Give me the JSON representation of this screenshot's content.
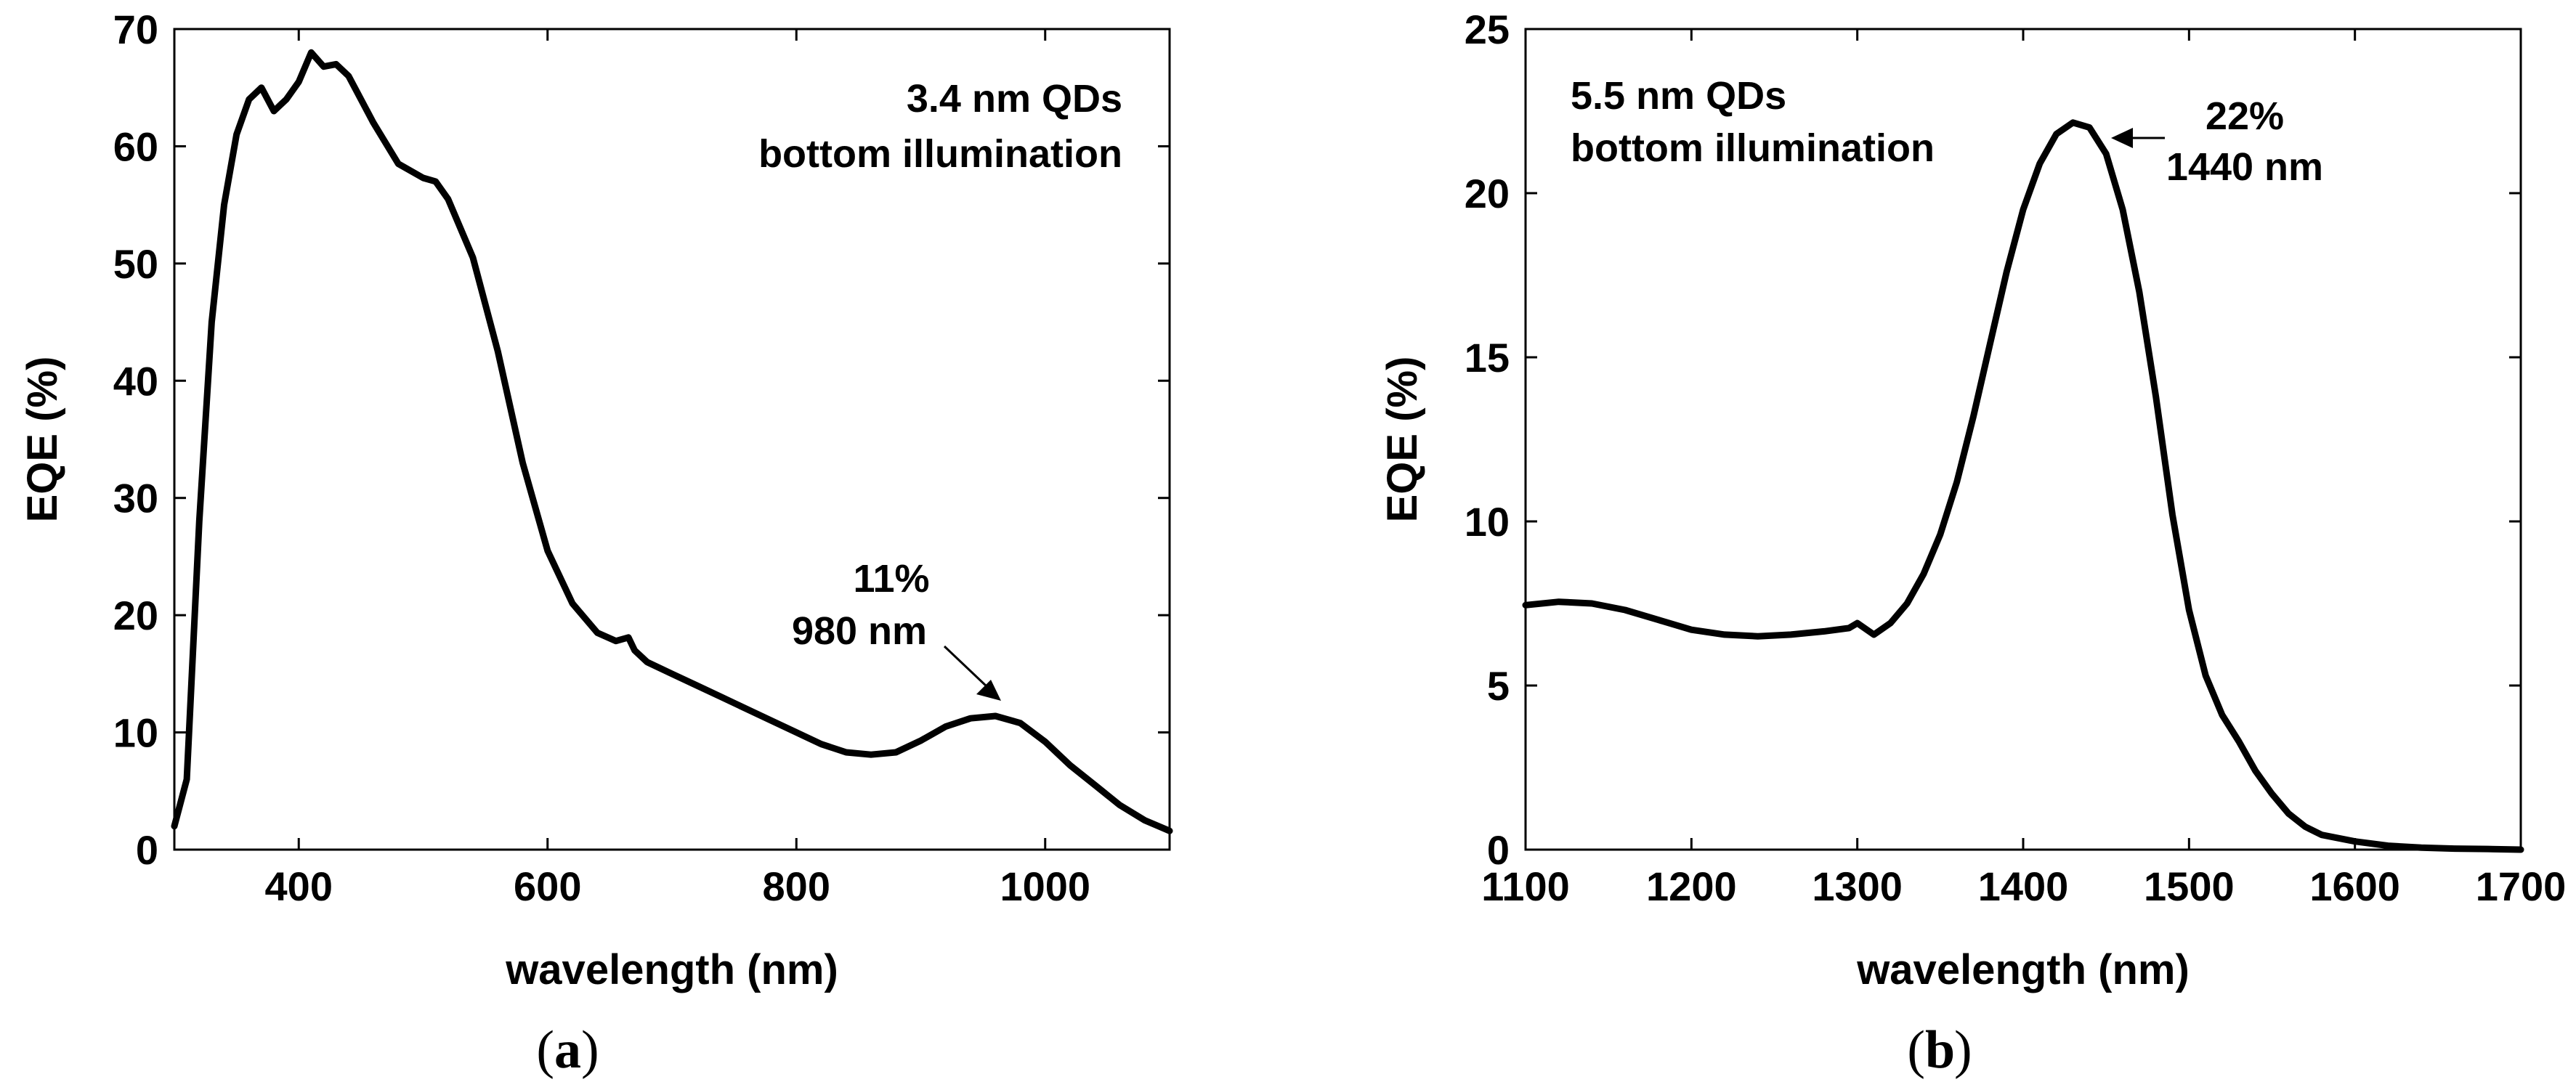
{
  "chart_data": [
    {
      "type": "line",
      "panel": "(a)",
      "panel_letter": "a",
      "xlabel": "wavelength (nm)",
      "ylabel": "EQE (%)",
      "xlim": [
        300,
        1100
      ],
      "ylim": [
        0,
        70
      ],
      "xticks": [
        400,
        600,
        800,
        1000
      ],
      "yticks": [
        0,
        10,
        20,
        30,
        40,
        50,
        60,
        70
      ],
      "grid": false,
      "legend": "none",
      "text_box": [
        "3.4 nm QDs",
        "bottom illumination"
      ],
      "annotation": {
        "lines": [
          "11%",
          "980 nm"
        ],
        "x": 960,
        "y": 11
      },
      "series": [
        {
          "x": [
            300,
            310,
            320,
            330,
            340,
            350,
            360,
            370,
            380,
            390,
            400,
            410,
            420,
            430,
            440,
            460,
            480,
            500,
            510,
            520,
            540,
            560,
            580,
            600,
            620,
            640,
            655,
            665,
            670,
            680,
            700,
            720,
            740,
            760,
            780,
            800,
            820,
            840,
            860,
            880,
            900,
            920,
            940,
            960,
            980,
            1000,
            1020,
            1040,
            1060,
            1080,
            1100
          ],
          "y": [
            2,
            6,
            28,
            45,
            55,
            61,
            64,
            65,
            63,
            64,
            65.5,
            68,
            66.8,
            67,
            66,
            62,
            58.5,
            57.3,
            57,
            55.5,
            50.5,
            42.5,
            33,
            25.5,
            21,
            18.5,
            17.8,
            18.1,
            17,
            16,
            15,
            14,
            13,
            12,
            11,
            10,
            9,
            8.3,
            8.1,
            8.3,
            9.3,
            10.5,
            11.2,
            11.4,
            10.8,
            9.2,
            7.2,
            5.5,
            3.8,
            2.5,
            1.6
          ]
        }
      ]
    },
    {
      "type": "line",
      "panel": "(b)",
      "panel_letter": "b",
      "xlabel": "wavelength (nm)",
      "ylabel": "EQE (%)",
      "xlim": [
        1100,
        1700
      ],
      "ylim": [
        0,
        25
      ],
      "xticks": [
        1100,
        1200,
        1300,
        1400,
        1500,
        1600,
        1700
      ],
      "yticks": [
        0,
        5,
        10,
        15,
        20,
        25
      ],
      "grid": false,
      "legend": "none",
      "text_box": [
        "5.5 nm QDs",
        "bottom illumination"
      ],
      "annotation": {
        "lines": [
          "22%",
          "1440 nm"
        ],
        "x": 1440,
        "y": 22
      },
      "series": [
        {
          "x": [
            1100,
            1120,
            1140,
            1160,
            1180,
            1200,
            1220,
            1240,
            1260,
            1280,
            1295,
            1300,
            1310,
            1320,
            1330,
            1340,
            1350,
            1360,
            1370,
            1380,
            1390,
            1400,
            1410,
            1420,
            1430,
            1440,
            1450,
            1460,
            1470,
            1480,
            1490,
            1500,
            1510,
            1520,
            1530,
            1540,
            1550,
            1560,
            1570,
            1580,
            1600,
            1620,
            1640,
            1660,
            1680,
            1700
          ],
          "y": [
            7.45,
            7.55,
            7.5,
            7.3,
            7.0,
            6.7,
            6.55,
            6.5,
            6.55,
            6.65,
            6.75,
            6.9,
            6.55,
            6.9,
            7.5,
            8.4,
            9.6,
            11.2,
            13.2,
            15.4,
            17.6,
            19.5,
            20.9,
            21.8,
            22.15,
            22.0,
            21.2,
            19.5,
            17.0,
            13.8,
            10.2,
            7.3,
            5.3,
            4.1,
            3.3,
            2.4,
            1.7,
            1.1,
            0.7,
            0.45,
            0.25,
            0.12,
            0.06,
            0.03,
            0.02,
            0.0
          ]
        }
      ]
    }
  ]
}
